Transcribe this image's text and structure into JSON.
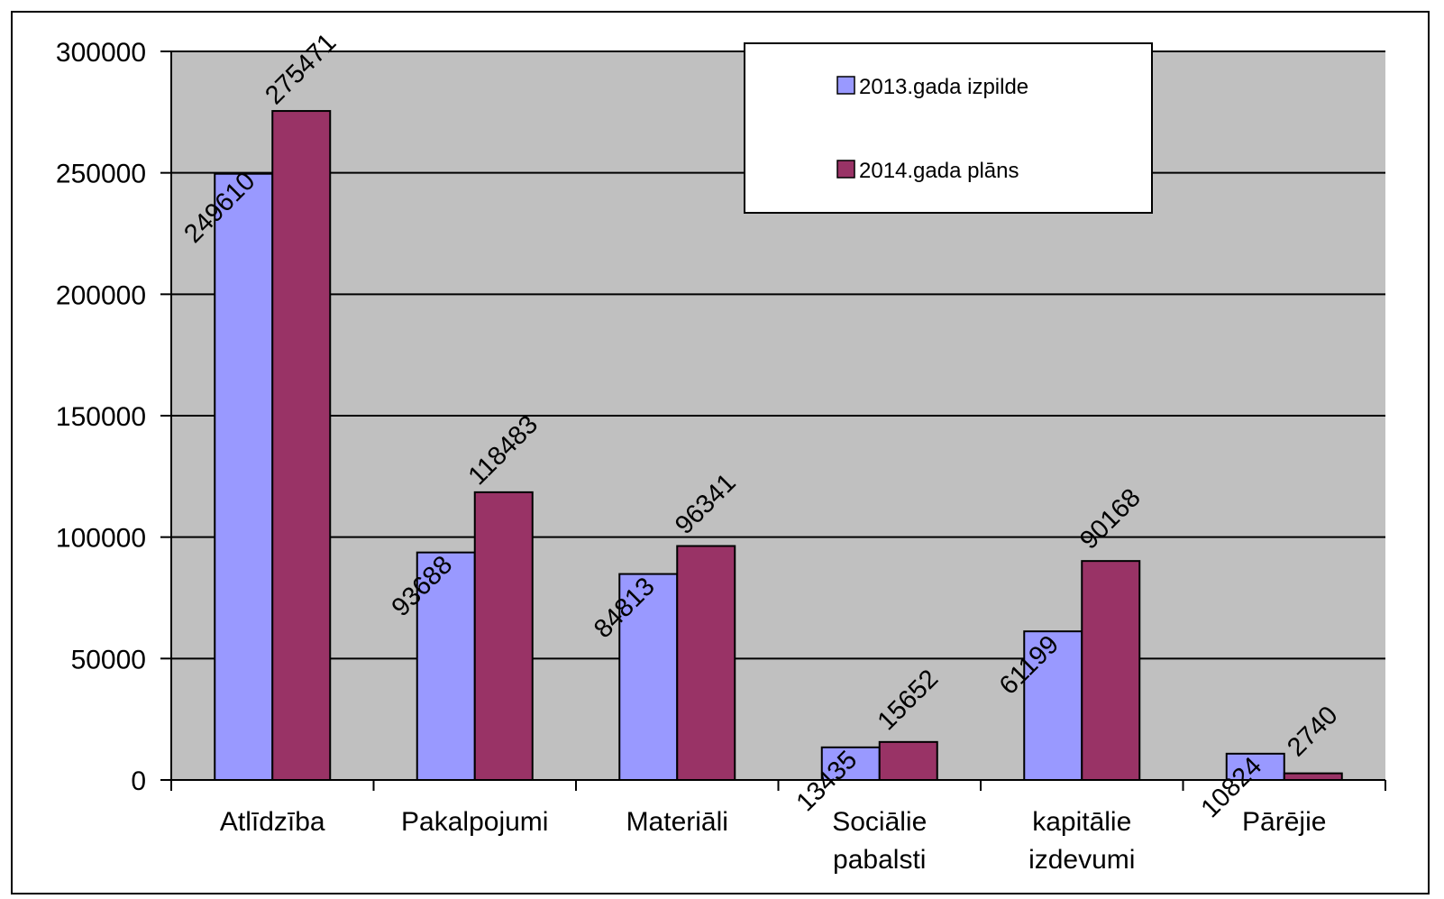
{
  "chart_data": {
    "type": "bar",
    "title": "",
    "xlabel": "",
    "ylabel": "",
    "ylim": [
      0,
      300000
    ],
    "yticks": [
      "0",
      "50000",
      "100000",
      "150000",
      "200000",
      "250000",
      "300000"
    ],
    "grid": true,
    "plot_background": "#C0C0C0",
    "legend_position": "top-right",
    "categories": [
      [
        "Atlīdzība"
      ],
      [
        "Pakalpojumi"
      ],
      [
        "Materiāli"
      ],
      [
        "Sociālie",
        "pabalsti"
      ],
      [
        "kapitālie",
        "izdevumi"
      ],
      [
        "Pārējie"
      ]
    ],
    "series": [
      {
        "name": "2013.gada izpilde",
        "color": "#9999FF",
        "values": [
          249610,
          93688,
          84813,
          13435,
          61199,
          10824
        ]
      },
      {
        "name": "2014.gada plāns",
        "color": "#993366",
        "values": [
          275471,
          118483,
          96341,
          15652,
          90168,
          2740
        ]
      }
    ]
  }
}
